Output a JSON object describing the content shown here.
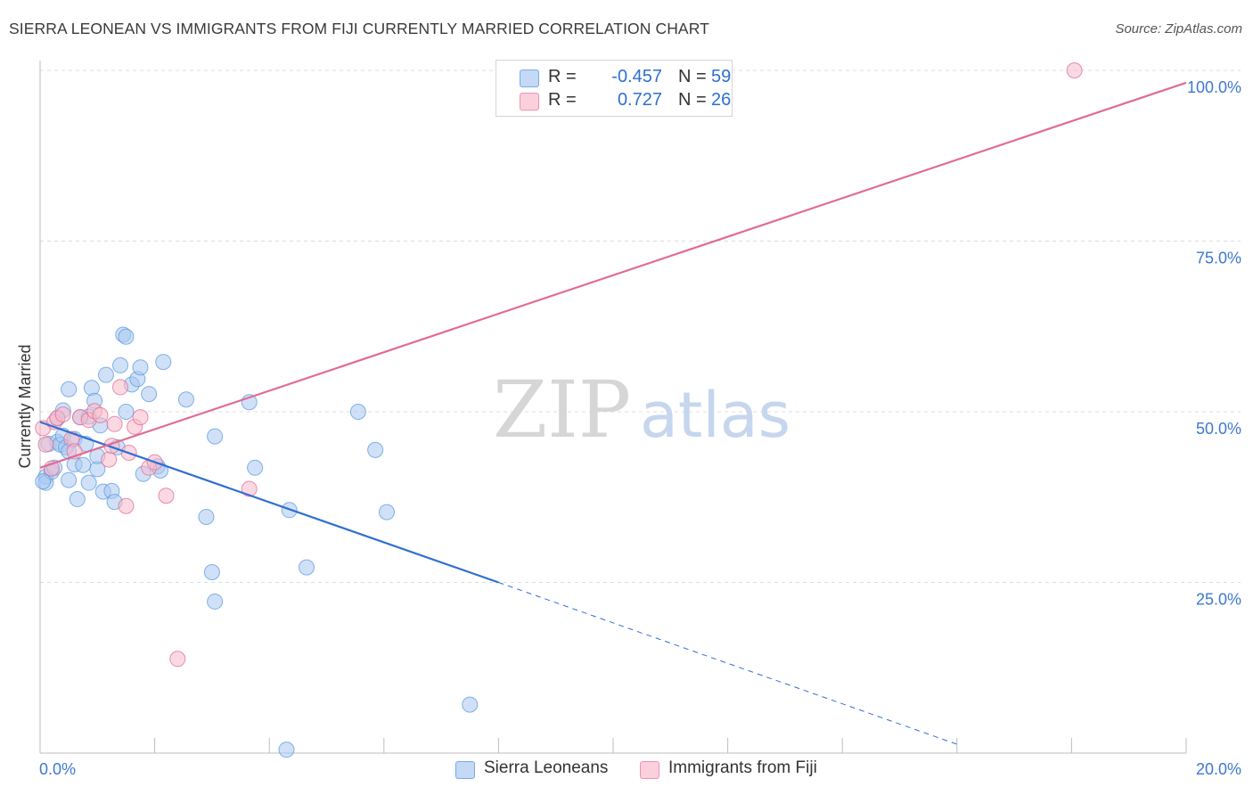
{
  "title": "SIERRA LEONEAN VS IMMIGRANTS FROM FIJI CURRENTLY MARRIED CORRELATION CHART",
  "source": "Source: ZipAtlas.com",
  "watermark": {
    "zip": "ZIP",
    "atlas": "atlas"
  },
  "legend": {
    "rows": [
      {
        "r_label": "R =",
        "r_value": "-0.457",
        "n_label": "N =",
        "n_value": "59",
        "color": "#a9c8f0"
      },
      {
        "r_label": "R =",
        "r_value": "0.727",
        "n_label": "N =",
        "n_value": "26",
        "color": "#f7b9cb"
      }
    ]
  },
  "bottom_legend": [
    {
      "label": "Sierra Leoneans",
      "color": "#a9c8f0"
    },
    {
      "label": "Immigrants from Fiji",
      "color": "#f7b9cb"
    }
  ],
  "chart_data": {
    "type": "scatter",
    "title": "SIERRA LEONEAN VS IMMIGRANTS FROM FIJI CURRENTLY MARRIED CORRELATION CHART",
    "xlabel": "",
    "ylabel": "Currently Married",
    "xlim": [
      0,
      20
    ],
    "ylim": [
      0,
      100
    ],
    "x_ticks": [
      0,
      2,
      4,
      6,
      8,
      10,
      12,
      14,
      16,
      18,
      20
    ],
    "x_tick_labels_shown": {
      "0": "0.0%",
      "20": "20.0%"
    },
    "y_ticks": [
      25,
      50,
      75,
      100
    ],
    "y_tick_labels": [
      "25.0%",
      "50.0%",
      "75.0%",
      "100.0%"
    ],
    "grid": "horizontal dashed",
    "legend_position": "top-center",
    "series": [
      {
        "name": "Sierra Leoneans",
        "color": "#5b9ae0",
        "fill": "#a9c8f0",
        "trend": {
          "x0": 0,
          "y0": 48.5,
          "x1": 8.0,
          "y1": 25.0,
          "dashed_to_x": 16.0,
          "dashed_to_y": 1.3
        },
        "points": [
          [
            0.1,
            40.5
          ],
          [
            0.1,
            39.6
          ],
          [
            0.15,
            45.3
          ],
          [
            0.2,
            41.2
          ],
          [
            0.25,
            41.8
          ],
          [
            0.3,
            45.6
          ],
          [
            0.35,
            45.2
          ],
          [
            0.4,
            46.5
          ],
          [
            0.4,
            50.2
          ],
          [
            0.45,
            44.8
          ],
          [
            0.5,
            44.2
          ],
          [
            0.5,
            40.0
          ],
          [
            0.5,
            53.3
          ],
          [
            0.6,
            46.0
          ],
          [
            0.6,
            42.3
          ],
          [
            0.65,
            37.2
          ],
          [
            0.7,
            49.2
          ],
          [
            0.75,
            42.2
          ],
          [
            0.8,
            45.3
          ],
          [
            0.85,
            49.3
          ],
          [
            0.85,
            39.6
          ],
          [
            0.9,
            53.5
          ],
          [
            0.95,
            51.6
          ],
          [
            1.0,
            41.6
          ],
          [
            1.0,
            43.5
          ],
          [
            1.05,
            48.0
          ],
          [
            1.1,
            38.3
          ],
          [
            1.15,
            55.4
          ],
          [
            1.25,
            38.4
          ],
          [
            1.3,
            36.8
          ],
          [
            1.35,
            44.8
          ],
          [
            1.4,
            56.8
          ],
          [
            1.45,
            61.3
          ],
          [
            1.5,
            50.0
          ],
          [
            1.5,
            61.0
          ],
          [
            1.6,
            54.0
          ],
          [
            1.7,
            54.8
          ],
          [
            1.75,
            56.5
          ],
          [
            1.8,
            40.9
          ],
          [
            1.9,
            52.6
          ],
          [
            2.05,
            42.0
          ],
          [
            2.1,
            41.4
          ],
          [
            2.15,
            57.3
          ],
          [
            2.55,
            51.8
          ],
          [
            2.9,
            34.6
          ],
          [
            3.0,
            26.5
          ],
          [
            3.05,
            22.2
          ],
          [
            3.05,
            46.4
          ],
          [
            3.65,
            51.4
          ],
          [
            3.75,
            41.8
          ],
          [
            4.35,
            35.6
          ],
          [
            4.3,
            0.5
          ],
          [
            4.65,
            27.2
          ],
          [
            5.55,
            50.0
          ],
          [
            5.85,
            44.4
          ],
          [
            6.05,
            35.3
          ],
          [
            7.5,
            7.1
          ],
          [
            0.05,
            39.8
          ],
          [
            0.3,
            49.0
          ]
        ]
      },
      {
        "name": "Immigrants from Fiji",
        "color": "#e06b94",
        "fill": "#f7b9cb",
        "trend": {
          "x0": 0,
          "y0": 41.8,
          "x1": 20.0,
          "y1": 98.2
        },
        "points": [
          [
            0.05,
            47.6
          ],
          [
            0.1,
            45.2
          ],
          [
            0.2,
            41.7
          ],
          [
            0.25,
            48.5
          ],
          [
            0.3,
            49.1
          ],
          [
            0.4,
            49.6
          ],
          [
            0.55,
            46.0
          ],
          [
            0.7,
            49.2
          ],
          [
            0.85,
            48.8
          ],
          [
            0.95,
            50.1
          ],
          [
            1.05,
            49.5
          ],
          [
            1.2,
            43.0
          ],
          [
            1.25,
            45.0
          ],
          [
            1.3,
            48.2
          ],
          [
            1.4,
            53.6
          ],
          [
            1.5,
            36.2
          ],
          [
            1.55,
            44.0
          ],
          [
            1.65,
            47.8
          ],
          [
            1.75,
            49.2
          ],
          [
            1.9,
            41.8
          ],
          [
            2.0,
            42.6
          ],
          [
            2.2,
            37.7
          ],
          [
            2.4,
            13.8
          ],
          [
            3.65,
            38.7
          ],
          [
            18.05,
            100.0
          ],
          [
            0.6,
            44.2
          ]
        ]
      }
    ]
  }
}
